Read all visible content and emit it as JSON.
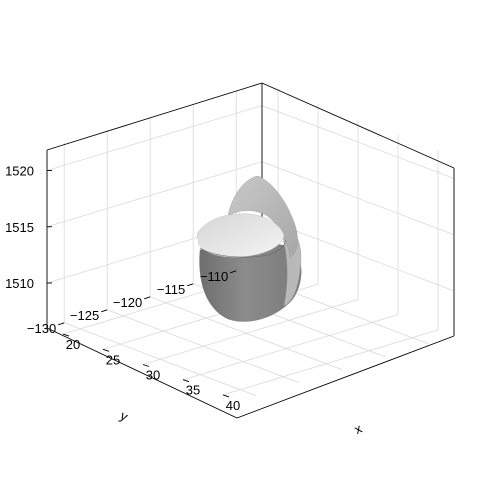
{
  "chart_data": {
    "type": "scatter",
    "subtype": "3d-surface",
    "title": "",
    "xlabel": "x",
    "ylabel": "y",
    "zlabel": "",
    "x_ticks": [
      20,
      25,
      30,
      35,
      40
    ],
    "y_ticks": [
      -110,
      -115,
      -120,
      -125,
      -130
    ],
    "z_ticks": [
      1510,
      1515,
      1520
    ],
    "x_tick_labels": [
      "20",
      "25",
      "30",
      "35",
      "40"
    ],
    "y_tick_labels": [
      "−110",
      "−115",
      "−120",
      "−125",
      "−130"
    ],
    "z_tick_labels": [
      "1510",
      "1515",
      "1520"
    ],
    "xlim": [
      18,
      42
    ],
    "ylim": [
      -132,
      -107
    ],
    "zlim": [
      1506,
      1522
    ],
    "grid": true,
    "surface_color": "#9a9a9a",
    "surface_highlight": "#e6e6e6",
    "axis_color": "#000000",
    "grid_color": "#d9d9d9"
  }
}
